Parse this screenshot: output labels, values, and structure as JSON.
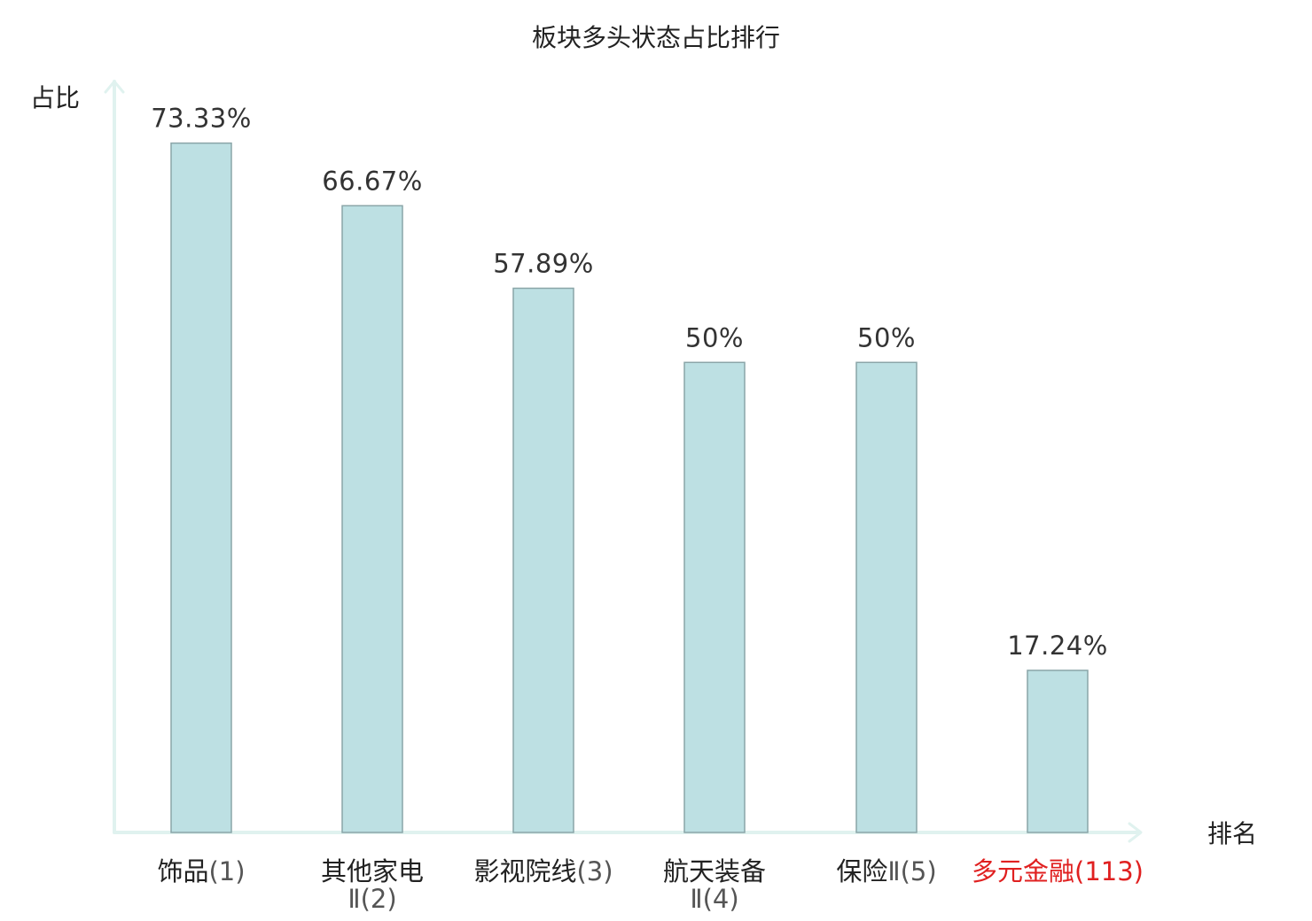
{
  "chart_data": {
    "type": "bar",
    "title": "板块多头状态占比排行",
    "xlabel": "排名",
    "ylabel": "占比",
    "ylim": [
      0,
      80
    ],
    "grid": false,
    "categories": [
      {
        "name": "饰品",
        "suffix": "",
        "rank": "(1)",
        "highlight": false
      },
      {
        "name": "其他家电",
        "suffix": "Ⅱ",
        "rank": "(2)",
        "highlight": false
      },
      {
        "name": "影视院线",
        "suffix": "",
        "rank": "(3)",
        "highlight": false
      },
      {
        "name": "航天装备",
        "suffix": "Ⅱ",
        "rank": "(4)",
        "highlight": false
      },
      {
        "name": "保险",
        "suffix": "Ⅱ",
        "rank": "(5)",
        "highlight": false
      },
      {
        "name": "多元金融",
        "suffix": "",
        "rank": "(113)",
        "highlight": true
      }
    ],
    "values": [
      73.33,
      66.67,
      57.89,
      50,
      50,
      17.24
    ],
    "value_labels": [
      "73.33%",
      "66.67%",
      "57.89%",
      "50%",
      "50%",
      "17.24%"
    ]
  },
  "colors": {
    "bar_fill": "#bde0e3",
    "bar_stroke": "#8aa5a8",
    "axis": "#e0f2ef",
    "highlight": "#e02020"
  }
}
